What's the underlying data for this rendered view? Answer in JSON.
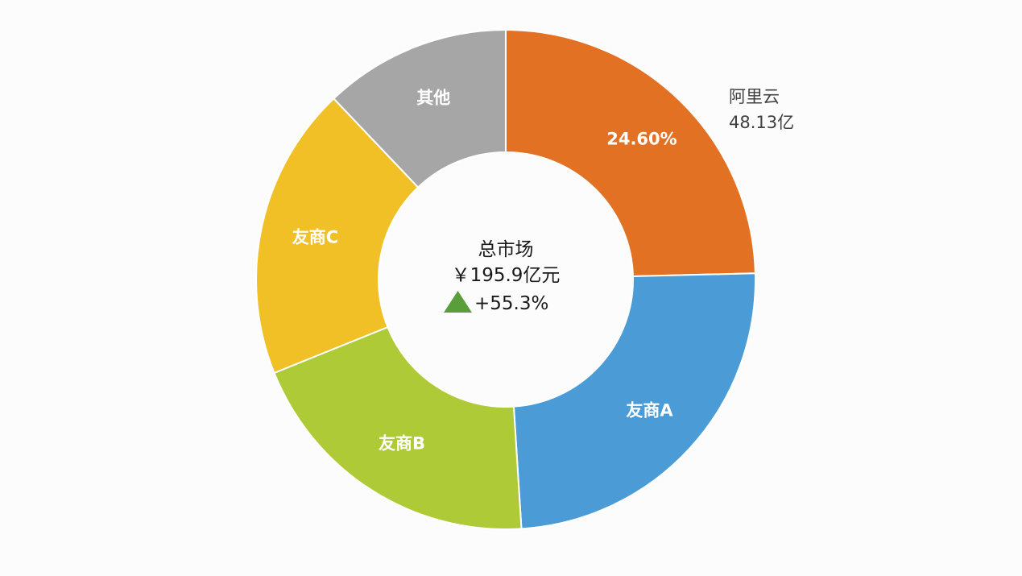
{
  "chart_data": {
    "type": "pie",
    "variant": "donut",
    "categories": [
      "阿里云",
      "友商A",
      "友商B",
      "友商C",
      "其他"
    ],
    "values": [
      24.6,
      24.4,
      19.9,
      19.0,
      12.1
    ],
    "colors": [
      "#e37124",
      "#4a9bd6",
      "#aeca37",
      "#f0c026",
      "#a6a6a6"
    ],
    "slice_labels": [
      "24.60%",
      "友商A",
      "友商B",
      "友商C",
      "其他"
    ],
    "outer_label": {
      "name": "阿里云",
      "value": "48.13亿"
    },
    "center": {
      "title": "总市场",
      "total": "￥195.9亿元",
      "growth": "+55.3%",
      "growth_color": "#5a9e3c"
    }
  }
}
